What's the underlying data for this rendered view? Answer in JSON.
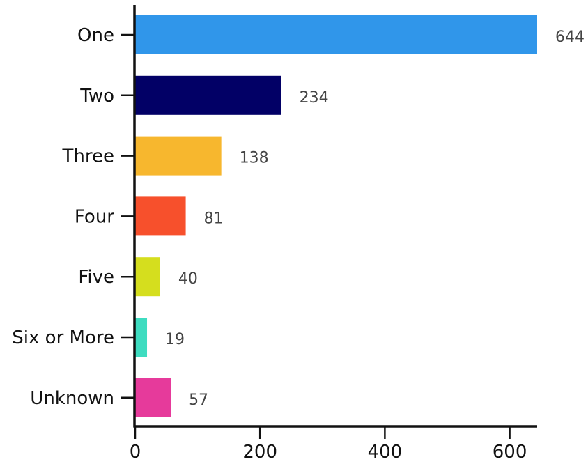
{
  "chart_data": {
    "type": "bar",
    "orientation": "horizontal",
    "categories": [
      "One",
      "Two",
      "Three",
      "Four",
      "Five",
      "Six or More",
      "Unknown"
    ],
    "values": [
      644,
      234,
      138,
      81,
      40,
      19,
      57
    ],
    "colors": [
      "#3096EA",
      "#020066",
      "#F7B72E",
      "#F7502C",
      "#D5DE1E",
      "#3EDCC0",
      "#E63A9B"
    ],
    "xlim": [
      0,
      644
    ],
    "xticks": [
      0,
      200,
      400,
      600
    ],
    "title": "",
    "xlabel": "",
    "ylabel": "",
    "grid": false,
    "data_labels": true
  }
}
